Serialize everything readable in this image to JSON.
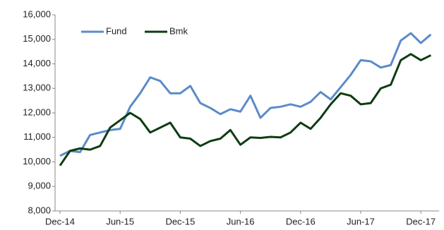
{
  "chart_data": {
    "type": "line",
    "categories": [
      "Dec-14",
      null,
      null,
      null,
      null,
      null,
      "Jun-15",
      null,
      null,
      null,
      null,
      null,
      "Dec-15",
      null,
      null,
      null,
      null,
      null,
      "Jun-16",
      null,
      null,
      null,
      null,
      null,
      "Dec-16",
      null,
      null,
      null,
      null,
      null,
      "Jun-17",
      null,
      null,
      null,
      null,
      null,
      "Dec-17",
      null
    ],
    "series": [
      {
        "name": "Fund",
        "color": "#5b8bc9",
        "values": [
          10250,
          10450,
          10400,
          11100,
          11200,
          11300,
          11350,
          12250,
          12800,
          13450,
          13300,
          12800,
          12800,
          13100,
          12400,
          12200,
          11950,
          12150,
          12050,
          12700,
          11800,
          12200,
          12250,
          12350,
          12250,
          12450,
          12850,
          12550,
          13050,
          13550,
          14150,
          14100,
          13850,
          13950,
          14950,
          15250,
          14850,
          15200
        ]
      },
      {
        "name": "Bmk",
        "color": "#0d3d12",
        "values": [
          9850,
          10450,
          10550,
          10500,
          10650,
          11400,
          11700,
          12000,
          11750,
          11200,
          11400,
          11600,
          11000,
          10950,
          10650,
          10850,
          10950,
          11300,
          10700,
          11000,
          10980,
          11020,
          11000,
          11200,
          11600,
          11350,
          11800,
          12350,
          12800,
          12700,
          12350,
          12400,
          13000,
          13150,
          14150,
          14400,
          14150,
          14350
        ]
      }
    ],
    "ylim": [
      8000,
      16000
    ],
    "yticks": [
      {
        "value": 8000,
        "label": "8,000"
      },
      {
        "value": 9000,
        "label": "9,000"
      },
      {
        "value": 10000,
        "label": "10,000"
      },
      {
        "value": 11000,
        "label": "11,000"
      },
      {
        "value": 12000,
        "label": "12,000"
      },
      {
        "value": 13000,
        "label": "13,000"
      },
      {
        "value": 14000,
        "label": "14,000"
      },
      {
        "value": 15000,
        "label": "15,000"
      },
      {
        "value": 16000,
        "label": "16,000"
      }
    ],
    "legend": "top-left"
  }
}
